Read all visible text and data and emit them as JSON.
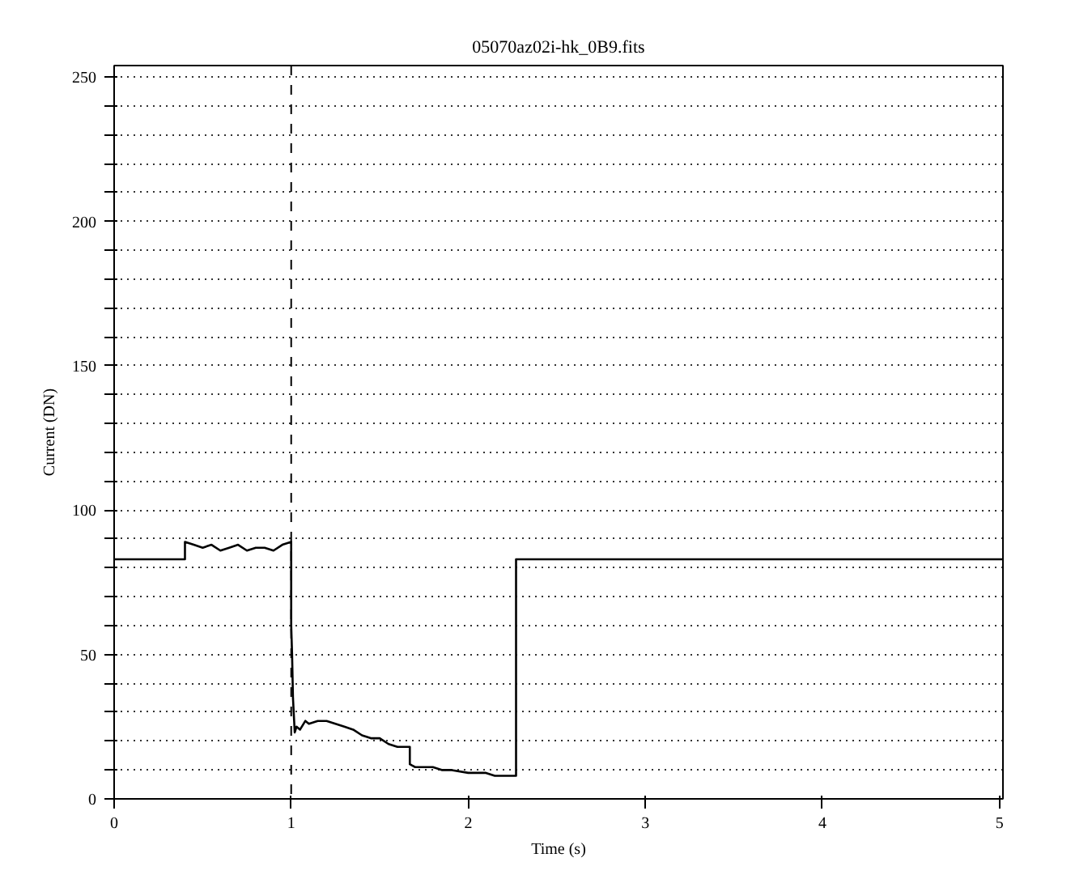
{
  "chart_data": {
    "type": "line",
    "title": "05070az02i-hk_0B9.fits",
    "xlabel": "Time (s)",
    "ylabel": "Current (DN)",
    "series": [
      {
        "color": "#000000",
        "x": [
          0,
          0.4,
          0.4,
          0.45,
          0.5,
          0.55,
          0.6,
          0.65,
          0.7,
          0.75,
          0.8,
          0.85,
          0.9,
          0.95,
          1.0,
          1.0,
          1.005,
          1.01,
          1.02,
          1.03,
          1.05,
          1.08,
          1.1,
          1.15,
          1.2,
          1.25,
          1.3,
          1.35,
          1.4,
          1.45,
          1.5,
          1.55,
          1.6,
          1.67,
          1.67,
          1.7,
          1.75,
          1.8,
          1.85,
          1.9,
          2.0,
          2.05,
          2.1,
          2.15,
          2.2,
          2.27,
          2.27,
          5.02
        ],
        "values": [
          83,
          83,
          89,
          88,
          87,
          88,
          86,
          87,
          88,
          86,
          87,
          87,
          86,
          88,
          89,
          60,
          50,
          35,
          23,
          25,
          24,
          27,
          26,
          27,
          27,
          26,
          25,
          24,
          22,
          21,
          21,
          19,
          18,
          18,
          12,
          11,
          11,
          11,
          10,
          10,
          9,
          9,
          9,
          8,
          8,
          8,
          83,
          83
        ]
      }
    ],
    "xlim": [
      0,
      5.02
    ],
    "xticks": [
      0,
      1,
      2,
      3,
      4,
      5
    ],
    "ylim": [
      0,
      254
    ],
    "yticks": [
      0,
      {
        "value": 10,
        "label": null
      },
      {
        "value": 20,
        "label": null
      },
      {
        "value": 30,
        "label": null
      },
      {
        "value": 40,
        "label": null
      },
      50,
      {
        "value": 60,
        "label": null
      },
      {
        "value": 70,
        "label": null
      },
      {
        "value": 80,
        "label": null
      },
      {
        "value": 90,
        "label": null
      },
      100,
      {
        "value": 110,
        "label": null
      },
      {
        "value": 120,
        "label": null
      },
      {
        "value": 130,
        "label": null
      },
      {
        "value": 140,
        "label": null
      },
      150,
      {
        "value": 160,
        "label": null
      },
      {
        "value": 170,
        "label": null
      },
      {
        "value": 180,
        "label": null
      },
      {
        "value": 190,
        "label": null
      },
      200,
      {
        "value": 210,
        "label": null
      },
      {
        "value": 220,
        "label": null
      },
      {
        "value": 230,
        "label": null
      },
      {
        "value": 240,
        "label": null
      },
      250
    ],
    "grid": "y",
    "line_style": "solid",
    "ref_lines": [
      {
        "axis": "x",
        "value": 1,
        "line_style": "dashed",
        "color": "#000000"
      }
    ]
  }
}
